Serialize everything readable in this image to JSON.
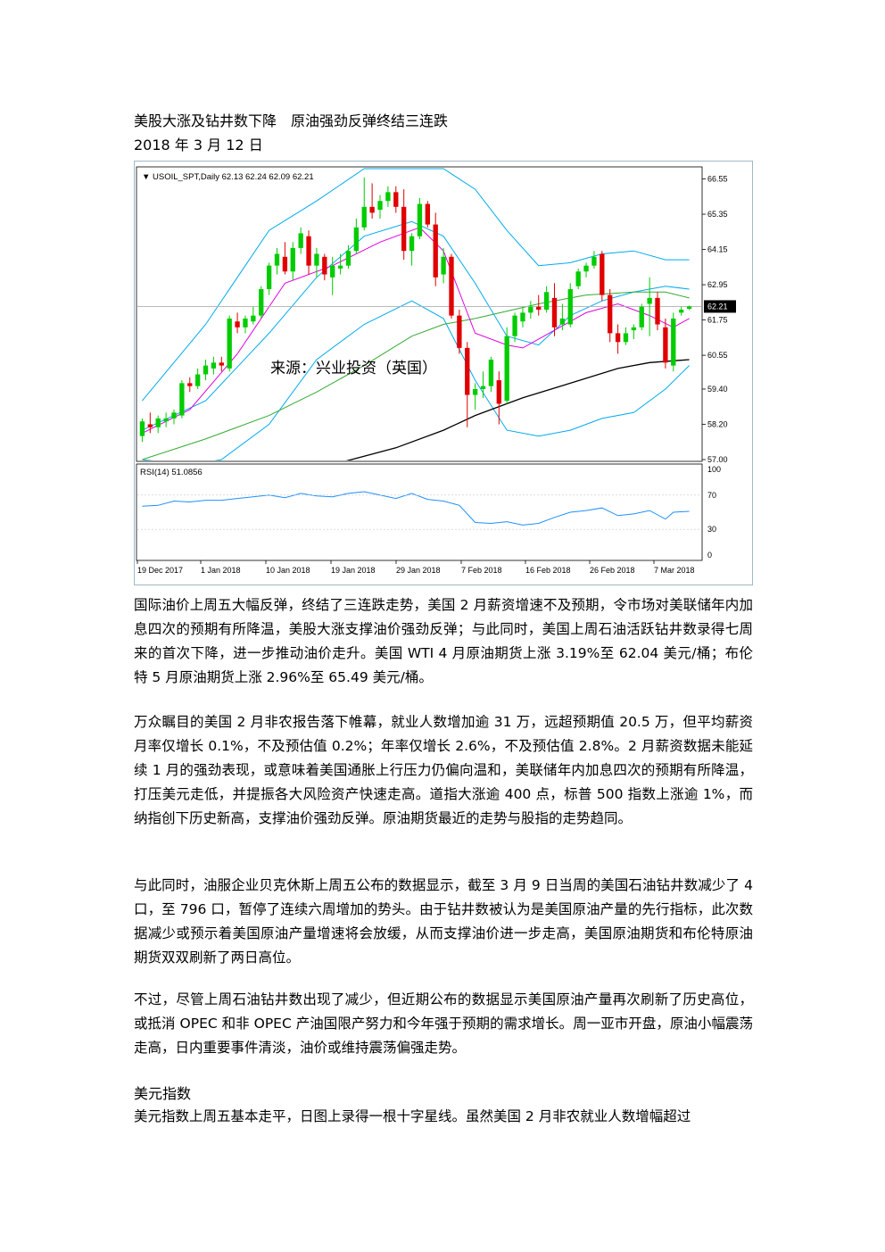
{
  "title": "美股大涨及钻井数下降　原油强劲反弹终结三连跌",
  "date": "2018 年 3 月 12 日",
  "paragraphs": {
    "p1": "国际油价上周五大幅反弹，终结了三连跌走势，美国 2 月薪资增速不及预期，令市场对美联储年内加息四次的预期有所降温，美股大涨支撑油价强劲反弹；与此同时，美国上周石油活跃钻井数录得七周来的首次下降，进一步推动油价走升。美国 WTI 4 月原油期货上涨 3.19%至 62.04 美元/桶；布伦特 5 月原油期货上涨 2.96%至 65.49 美元/桶。",
    "p2": "万众瞩目的美国 2 月非农报告落下帷幕，就业人数增加逾 31 万，远超预期值 20.5 万，但平均薪资月率仅增长 0.1%，不及预估值 0.2%；年率仅增长 2.6%，不及预估值 2.8%。2 月薪资数据未能延续 1 月的强劲表现，或意味着美国通胀上行压力仍偏向温和，美联储年内加息四次的预期有所降温，打压美元走低，并提振各大风险资产快速走高。道指大涨逾 400 点，标普 500 指数上涨逾 1%，而纳指创下历史新高，支撑油价强劲反弹。原油期货最近的走势与股指的走势趋同。",
    "p3": "与此同时，油服企业贝克休斯上周五公布的数据显示，截至 3 月 9 日当周的美国石油钻井数减少了 4 口，至 796 口，暂停了连续六周增加的势头。由于钻井数被认为是美国原油产量的先行指标，此次数据减少或预示着美国原油产量增速将会放缓，从而支撑油价进一步走高，美国原油期货和布伦特原油期货双双刷新了两日高位。",
    "p4": "不过，尽管上周石油钻井数出现了减少，但近期公布的数据显示美国原油产量再次刷新了历史高位，或抵消 OPEC 和非 OPEC 产油国限产努力和今年强于预期的需求增长。周一亚市开盘，原油小幅震荡走高，日内重要事件清淡，油价或维持震荡偏强走势。",
    "heading2": "美元指数",
    "p5": "美元指数上周五基本走平，日图上录得一根十字星线。虽然美国 2 月非农就业人数增幅超过"
  },
  "chart_data": {
    "type": "candlestick",
    "symbol_header": "USOIL_SPT,Daily  62.13 62.24 62.09 62.21",
    "watermark": "来源：兴业投资（英国）",
    "last_price_label": "62.21",
    "last_price": 62.21,
    "y_ticks": [
      "66.55",
      "65.35",
      "64.15",
      "62.95",
      "61.75",
      "60.55",
      "59.40",
      "58.20",
      "57.00"
    ],
    "ylim": [
      57.0,
      66.9
    ],
    "x_labels": [
      "19 Dec 2017",
      "1 Jan 2018",
      "10 Jan 2018",
      "19 Jan 2018",
      "29 Jan 2018",
      "7 Feb 2018",
      "16 Feb 2018",
      "26 Feb 2018",
      "7 Mar 2018"
    ],
    "candles": [
      {
        "o": 57.8,
        "h": 58.4,
        "l": 57.6,
        "c": 58.3
      },
      {
        "o": 58.2,
        "h": 58.6,
        "l": 57.9,
        "c": 58.1
      },
      {
        "o": 58.1,
        "h": 58.5,
        "l": 57.9,
        "c": 58.4
      },
      {
        "o": 58.3,
        "h": 58.6,
        "l": 58.1,
        "c": 58.4
      },
      {
        "o": 58.4,
        "h": 58.7,
        "l": 58.2,
        "c": 58.6
      },
      {
        "o": 58.5,
        "h": 59.7,
        "l": 58.4,
        "c": 59.6
      },
      {
        "o": 59.6,
        "h": 59.8,
        "l": 59.3,
        "c": 59.5
      },
      {
        "o": 59.5,
        "h": 60.1,
        "l": 59.4,
        "c": 59.9
      },
      {
        "o": 59.9,
        "h": 60.4,
        "l": 59.7,
        "c": 60.2
      },
      {
        "o": 60.1,
        "h": 60.5,
        "l": 59.9,
        "c": 60.3
      },
      {
        "o": 60.3,
        "h": 60.5,
        "l": 60.0,
        "c": 60.2
      },
      {
        "o": 60.1,
        "h": 61.9,
        "l": 60.0,
        "c": 61.8
      },
      {
        "o": 61.7,
        "h": 62.0,
        "l": 61.3,
        "c": 61.5
      },
      {
        "o": 61.5,
        "h": 61.9,
        "l": 61.3,
        "c": 61.8
      },
      {
        "o": 61.7,
        "h": 62.2,
        "l": 61.6,
        "c": 61.9
      },
      {
        "o": 61.9,
        "h": 62.9,
        "l": 61.8,
        "c": 62.8
      },
      {
        "o": 62.8,
        "h": 63.7,
        "l": 62.6,
        "c": 63.6
      },
      {
        "o": 63.6,
        "h": 64.2,
        "l": 63.3,
        "c": 64.0
      },
      {
        "o": 63.9,
        "h": 64.4,
        "l": 63.3,
        "c": 63.4
      },
      {
        "o": 63.4,
        "h": 64.4,
        "l": 63.1,
        "c": 64.2
      },
      {
        "o": 64.2,
        "h": 64.9,
        "l": 64.0,
        "c": 64.7
      },
      {
        "o": 64.6,
        "h": 64.8,
        "l": 63.3,
        "c": 63.6
      },
      {
        "o": 63.6,
        "h": 64.2,
        "l": 63.2,
        "c": 64.0
      },
      {
        "o": 63.9,
        "h": 64.0,
        "l": 63.1,
        "c": 63.3
      },
      {
        "o": 63.2,
        "h": 63.9,
        "l": 62.6,
        "c": 63.6
      },
      {
        "o": 63.5,
        "h": 64.0,
        "l": 63.3,
        "c": 63.6
      },
      {
        "o": 63.6,
        "h": 64.3,
        "l": 63.5,
        "c": 64.1
      },
      {
        "o": 64.1,
        "h": 65.2,
        "l": 64.0,
        "c": 64.9
      },
      {
        "o": 64.9,
        "h": 66.6,
        "l": 64.8,
        "c": 65.6
      },
      {
        "o": 65.6,
        "h": 66.4,
        "l": 65.2,
        "c": 65.4
      },
      {
        "o": 65.5,
        "h": 66.0,
        "l": 65.2,
        "c": 65.8
      },
      {
        "o": 65.8,
        "h": 66.3,
        "l": 65.6,
        "c": 66.1
      },
      {
        "o": 66.1,
        "h": 66.3,
        "l": 65.4,
        "c": 65.6
      },
      {
        "o": 65.6,
        "h": 66.2,
        "l": 63.8,
        "c": 64.1
      },
      {
        "o": 64.1,
        "h": 64.7,
        "l": 63.6,
        "c": 64.6
      },
      {
        "o": 64.6,
        "h": 65.9,
        "l": 64.5,
        "c": 65.7
      },
      {
        "o": 65.7,
        "h": 65.8,
        "l": 64.9,
        "c": 65.0
      },
      {
        "o": 65.0,
        "h": 65.4,
        "l": 62.9,
        "c": 63.2
      },
      {
        "o": 63.3,
        "h": 64.2,
        "l": 63.0,
        "c": 63.9
      },
      {
        "o": 63.9,
        "h": 64.0,
        "l": 61.8,
        "c": 61.9
      },
      {
        "o": 61.9,
        "h": 62.1,
        "l": 60.6,
        "c": 60.8
      },
      {
        "o": 60.8,
        "h": 61.0,
        "l": 58.1,
        "c": 59.2
      },
      {
        "o": 59.2,
        "h": 59.6,
        "l": 58.7,
        "c": 59.4
      },
      {
        "o": 59.4,
        "h": 60.0,
        "l": 59.1,
        "c": 59.5
      },
      {
        "o": 59.5,
        "h": 60.5,
        "l": 59.3,
        "c": 60.4
      },
      {
        "o": 59.7,
        "h": 60.0,
        "l": 58.2,
        "c": 58.9
      },
      {
        "o": 59.0,
        "h": 61.5,
        "l": 58.9,
        "c": 61.2
      },
      {
        "o": 61.2,
        "h": 62.0,
        "l": 61.0,
        "c": 61.9
      },
      {
        "o": 61.7,
        "h": 62.2,
        "l": 61.5,
        "c": 62.0
      },
      {
        "o": 62.0,
        "h": 62.4,
        "l": 61.8,
        "c": 62.2
      },
      {
        "o": 62.2,
        "h": 62.6,
        "l": 61.9,
        "c": 62.1
      },
      {
        "o": 62.1,
        "h": 62.9,
        "l": 62.0,
        "c": 62.7
      },
      {
        "o": 62.5,
        "h": 63.0,
        "l": 61.2,
        "c": 61.5
      },
      {
        "o": 61.6,
        "h": 62.3,
        "l": 61.4,
        "c": 61.8
      },
      {
        "o": 61.6,
        "h": 63.0,
        "l": 61.5,
        "c": 62.8
      },
      {
        "o": 62.9,
        "h": 63.5,
        "l": 62.8,
        "c": 63.4
      },
      {
        "o": 63.4,
        "h": 63.7,
        "l": 63.2,
        "c": 63.6
      },
      {
        "o": 63.6,
        "h": 64.1,
        "l": 63.5,
        "c": 63.9
      },
      {
        "o": 64.0,
        "h": 64.1,
        "l": 62.4,
        "c": 62.6
      },
      {
        "o": 62.6,
        "h": 62.8,
        "l": 61.0,
        "c": 61.3
      },
      {
        "o": 61.3,
        "h": 61.6,
        "l": 60.6,
        "c": 61.0
      },
      {
        "o": 61.0,
        "h": 61.5,
        "l": 60.9,
        "c": 61.3
      },
      {
        "o": 61.4,
        "h": 61.6,
        "l": 61.1,
        "c": 61.5
      },
      {
        "o": 61.5,
        "h": 62.3,
        "l": 61.4,
        "c": 62.2
      },
      {
        "o": 62.3,
        "h": 63.2,
        "l": 61.2,
        "c": 62.5
      },
      {
        "o": 62.5,
        "h": 62.7,
        "l": 61.4,
        "c": 61.6
      },
      {
        "o": 61.5,
        "h": 61.8,
        "l": 60.1,
        "c": 60.3
      },
      {
        "o": 60.2,
        "h": 62.0,
        "l": 60.0,
        "c": 61.8
      },
      {
        "o": 62.0,
        "h": 62.2,
        "l": 61.9,
        "c": 62.1
      },
      {
        "o": 62.13,
        "h": 62.24,
        "l": 62.09,
        "c": 62.21
      }
    ],
    "bollinger_upper": [
      [
        0,
        59.0
      ],
      [
        8,
        61.6
      ],
      [
        16,
        64.8
      ],
      [
        22,
        65.8
      ],
      [
        28,
        66.9
      ],
      [
        34,
        66.9
      ],
      [
        38,
        66.9
      ],
      [
        42,
        66.2
      ],
      [
        46,
        64.8
      ],
      [
        50,
        63.6
      ],
      [
        54,
        63.7
      ],
      [
        58,
        64.0
      ],
      [
        62,
        64.1
      ],
      [
        66,
        63.8
      ],
      [
        69,
        63.8
      ]
    ],
    "bollinger_mid": [
      [
        0,
        58.0
      ],
      [
        8,
        59.0
      ],
      [
        16,
        61.3
      ],
      [
        22,
        63.2
      ],
      [
        28,
        64.6
      ],
      [
        34,
        65.1
      ],
      [
        38,
        64.6
      ],
      [
        42,
        63.0
      ],
      [
        46,
        61.2
      ],
      [
        50,
        60.9
      ],
      [
        54,
        61.9
      ],
      [
        58,
        62.4
      ],
      [
        62,
        62.7
      ],
      [
        66,
        62.9
      ],
      [
        69,
        62.8
      ]
    ],
    "bollinger_lower": [
      [
        0,
        57.0
      ],
      [
        6,
        56.8
      ],
      [
        10,
        57.0
      ],
      [
        16,
        58.2
      ],
      [
        22,
        60.4
      ],
      [
        28,
        61.6
      ],
      [
        34,
        62.4
      ],
      [
        38,
        61.8
      ],
      [
        42,
        59.7
      ],
      [
        46,
        58.0
      ],
      [
        50,
        57.8
      ],
      [
        54,
        58.0
      ],
      [
        58,
        58.4
      ],
      [
        62,
        58.6
      ],
      [
        66,
        59.4
      ],
      [
        69,
        60.2
      ]
    ],
    "ma_pink": [
      [
        0,
        57.9
      ],
      [
        6,
        58.7
      ],
      [
        12,
        60.6
      ],
      [
        18,
        63.0
      ],
      [
        24,
        63.6
      ],
      [
        30,
        64.4
      ],
      [
        35,
        64.9
      ],
      [
        38,
        64.1
      ],
      [
        42,
        61.3
      ],
      [
        46,
        60.9
      ],
      [
        48,
        60.8
      ],
      [
        52,
        61.4
      ],
      [
        56,
        62.0
      ],
      [
        60,
        62.3
      ],
      [
        64,
        61.9
      ],
      [
        67,
        61.5
      ],
      [
        69,
        61.8
      ]
    ],
    "ma_green": [
      [
        0,
        57.0
      ],
      [
        8,
        57.7
      ],
      [
        16,
        58.5
      ],
      [
        22,
        59.3
      ],
      [
        28,
        60.2
      ],
      [
        34,
        61.2
      ],
      [
        38,
        61.6
      ],
      [
        42,
        61.8
      ],
      [
        50,
        62.3
      ],
      [
        56,
        62.6
      ],
      [
        62,
        62.7
      ],
      [
        66,
        62.7
      ],
      [
        69,
        62.5
      ]
    ],
    "ma_black": [
      [
        25,
        56.9
      ],
      [
        32,
        57.4
      ],
      [
        38,
        58.0
      ],
      [
        42,
        58.5
      ],
      [
        48,
        59.1
      ],
      [
        54,
        59.6
      ],
      [
        60,
        60.1
      ],
      [
        64,
        60.3
      ],
      [
        69,
        60.4
      ]
    ],
    "rsi": {
      "label": "RSI(14) 51.0856",
      "ticks": [
        "100",
        "70",
        "30",
        "0"
      ],
      "ylim": [
        0,
        100
      ],
      "values": [
        [
          0,
          57
        ],
        [
          2,
          58
        ],
        [
          4,
          63
        ],
        [
          6,
          62
        ],
        [
          8,
          64
        ],
        [
          10,
          64
        ],
        [
          12,
          66
        ],
        [
          14,
          68
        ],
        [
          16,
          70
        ],
        [
          18,
          67
        ],
        [
          20,
          72
        ],
        [
          22,
          69
        ],
        [
          24,
          68
        ],
        [
          26,
          72
        ],
        [
          28,
          74
        ],
        [
          30,
          70
        ],
        [
          32,
          66
        ],
        [
          34,
          72
        ],
        [
          36,
          65
        ],
        [
          38,
          63
        ],
        [
          40,
          58
        ],
        [
          42,
          38
        ],
        [
          44,
          37
        ],
        [
          46,
          39
        ],
        [
          48,
          35
        ],
        [
          50,
          37
        ],
        [
          52,
          44
        ],
        [
          54,
          50
        ],
        [
          56,
          52
        ],
        [
          58,
          55
        ],
        [
          60,
          46
        ],
        [
          62,
          48
        ],
        [
          64,
          52
        ],
        [
          66,
          42
        ],
        [
          67,
          50
        ],
        [
          69,
          51
        ]
      ]
    },
    "colors": {
      "bull": "#00cc00",
      "bear": "#e00000",
      "bb": "#00aaee",
      "ma_pink": "#e000e0",
      "ma_green": "#33aa33",
      "ma_black": "#000000",
      "rsi": "#1e90ff"
    }
  }
}
